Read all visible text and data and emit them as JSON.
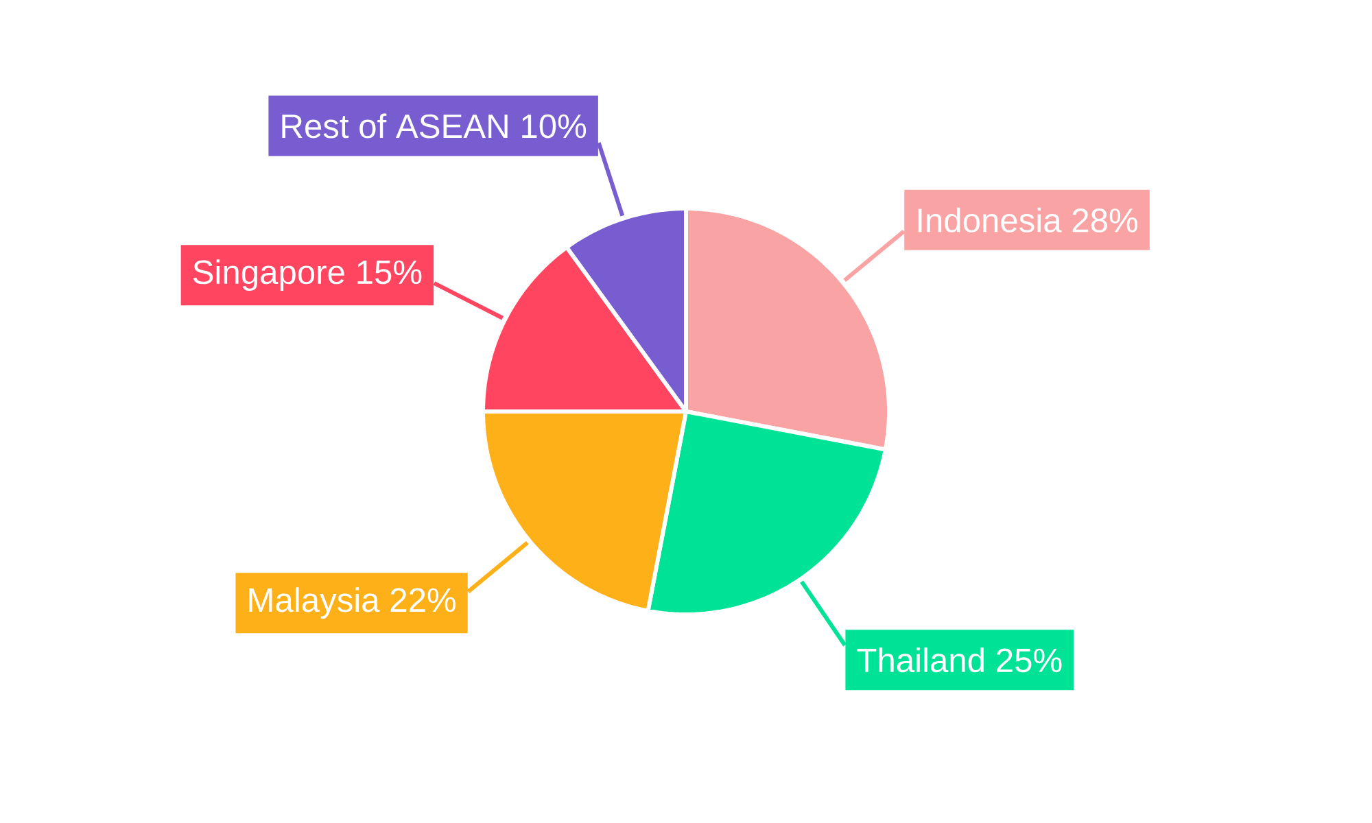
{
  "chart_data": {
    "type": "pie",
    "categories": [
      "Indonesia",
      "Thailand",
      "Malaysia",
      "Singapore",
      "Rest of ASEAN"
    ],
    "values": [
      28,
      25,
      22,
      15,
      10
    ],
    "value_labels": [
      "28%",
      "25%",
      "22%",
      "15%",
      "10%"
    ],
    "colors": [
      "#f9a3a4",
      "#00e396",
      "#feb019",
      "#ff4560",
      "#775dd0"
    ]
  }
}
